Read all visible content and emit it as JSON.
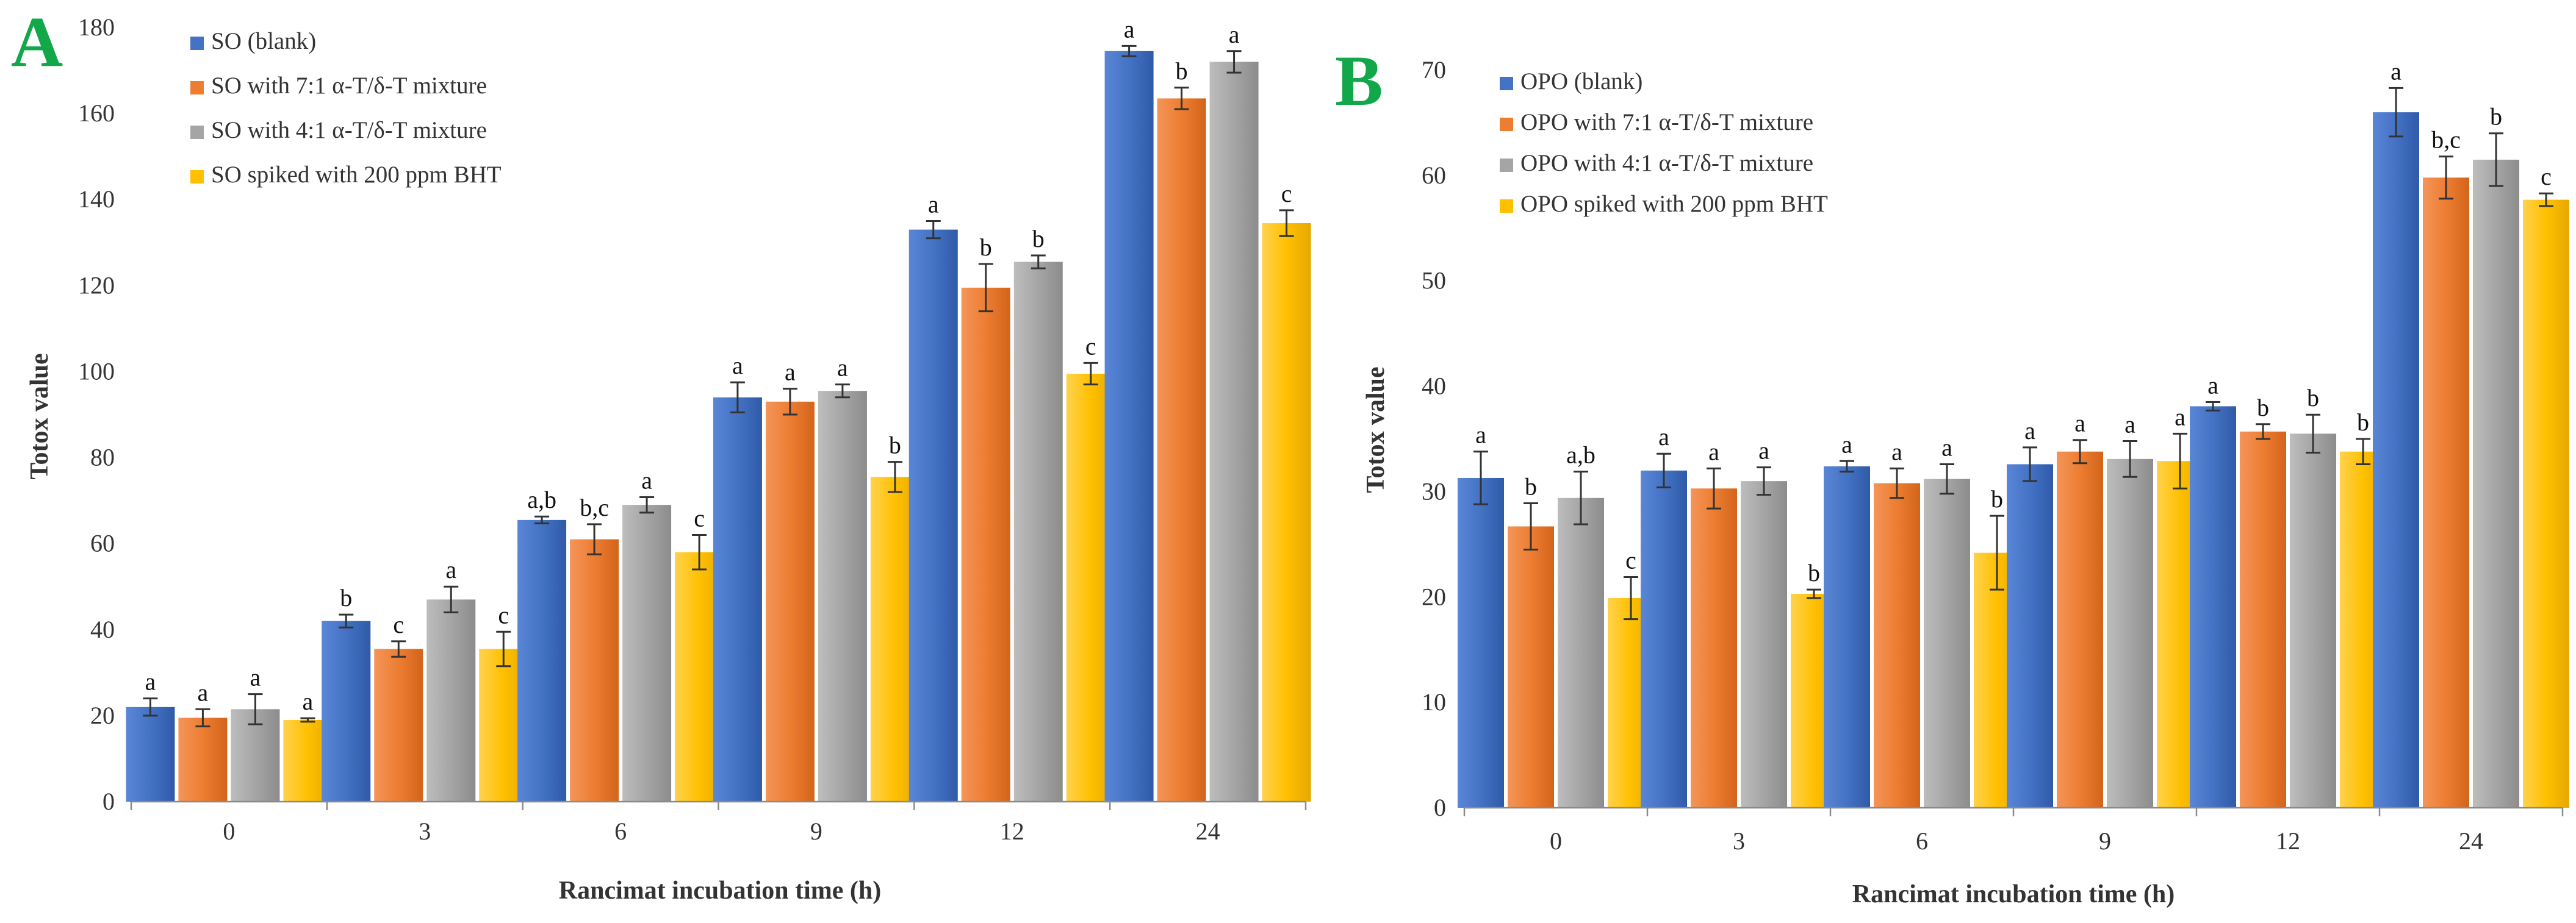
{
  "chart_data": [
    {
      "panel": "A",
      "type": "bar",
      "ylabel": "Totox value",
      "xlabel": "Rancimat incubation time (h)",
      "categories": [
        "0",
        "3",
        "6",
        "9",
        "12",
        "24"
      ],
      "ylim": [
        0,
        180
      ],
      "yticks": [
        "0",
        "20",
        "40",
        "60",
        "80",
        "100",
        "120",
        "140",
        "160",
        "180"
      ],
      "legend_position": "top-left",
      "series": [
        {
          "name": "SO (blank)",
          "color": "#4472C4",
          "values": [
            22,
            42,
            65.5,
            94,
            133,
            174.5
          ],
          "errors": [
            2,
            1.5,
            0.8,
            3.5,
            2,
            1.2
          ],
          "labels": [
            "a",
            "b",
            "a,b",
            "a",
            "a",
            "a"
          ]
        },
        {
          "name": "SO with 7:1 α-T/δ-T mixture",
          "color": "#ED7D31",
          "values": [
            19.5,
            35.5,
            61,
            93,
            119.5,
            163.5
          ],
          "errors": [
            2,
            1.8,
            3.5,
            3,
            5.5,
            2.5
          ],
          "labels": [
            "a",
            "c",
            "b,c",
            "a",
            "b",
            "b"
          ]
        },
        {
          "name": "SO with 4:1 α-T/δ-T mixture",
          "color": "#A5A5A5",
          "values": [
            21.5,
            47,
            69,
            95.5,
            125.5,
            172
          ],
          "errors": [
            3.5,
            3,
            1.8,
            1.5,
            1.5,
            2.5
          ],
          "labels": [
            "a",
            "a",
            "a",
            "a",
            "b",
            "a"
          ]
        },
        {
          "name": "SO spiked with 200 ppm BHT",
          "color": "#FFC000",
          "values": [
            19,
            35.5,
            58,
            75.5,
            99.5,
            134.5
          ],
          "errors": [
            0.4,
            4,
            4,
            3.5,
            2.5,
            3
          ],
          "labels": [
            "a",
            "c",
            "c",
            "b",
            "c",
            "c"
          ]
        }
      ]
    },
    {
      "panel": "B",
      "type": "bar",
      "ylabel": "Totox value",
      "xlabel": "Rancimat incubation time (h)",
      "categories": [
        "0",
        "3",
        "6",
        "9",
        "12",
        "24"
      ],
      "ylim": [
        0,
        70
      ],
      "yticks": [
        "0",
        "10",
        "20",
        "30",
        "40",
        "50",
        "60",
        "70"
      ],
      "legend_position": "top-left",
      "series": [
        {
          "name": "OPO (blank)",
          "color": "#4472C4",
          "values": [
            31.3,
            32,
            32.4,
            32.6,
            38.1,
            66
          ],
          "errors": [
            2.5,
            1.6,
            0.5,
            1.6,
            0.4,
            2.3
          ],
          "labels": [
            "a",
            "a",
            "a",
            "a",
            "a",
            "a"
          ]
        },
        {
          "name": "OPO with 7:1 α-T/δ-T mixture",
          "color": "#ED7D31",
          "values": [
            26.7,
            30.3,
            30.8,
            33.8,
            35.7,
            59.8
          ],
          "errors": [
            2.2,
            1.9,
            1.4,
            1.1,
            0.7,
            2
          ],
          "labels": [
            "b",
            "a",
            "a",
            "a",
            "b",
            "b,c"
          ]
        },
        {
          "name": "OPO with 4:1 α-T/δ-T mixture",
          "color": "#A5A5A5",
          "values": [
            29.4,
            31,
            31.2,
            33.1,
            35.5,
            61.5
          ],
          "errors": [
            2.5,
            1.3,
            1.4,
            1.7,
            1.8,
            2.5
          ],
          "labels": [
            "a,b",
            "a",
            "a",
            "a",
            "b",
            "b"
          ]
        },
        {
          "name": "OPO spiked with 200 ppm BHT",
          "color": "#FFC000",
          "values": [
            19.9,
            20.3,
            24.2,
            32.9,
            33.8,
            57.7
          ],
          "errors": [
            2,
            0.4,
            3.5,
            2.6,
            1.2,
            0.6
          ],
          "labels": [
            "c",
            "b",
            "b",
            "a",
            "b",
            "c"
          ]
        }
      ]
    }
  ]
}
